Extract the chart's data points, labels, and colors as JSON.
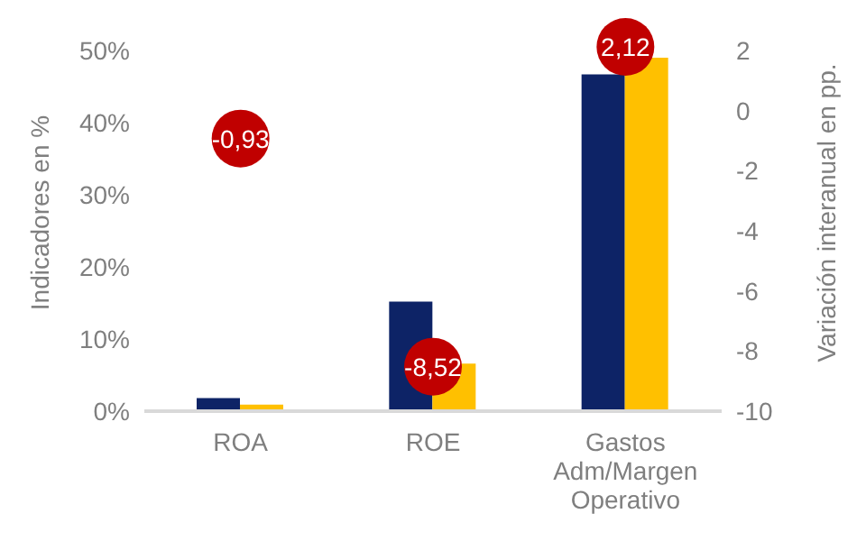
{
  "chart_data": {
    "type": "bar",
    "ylabel": "Indicadores en %",
    "y2label": "Variación interanual en pp.",
    "categories": [
      "ROA",
      "ROE",
      "Gastos Adm/Margen Operativo"
    ],
    "series": [
      {
        "color": "#0d2366",
        "values": [
          1.8,
          15.2,
          46.7
        ]
      },
      {
        "color": "#ffc000",
        "values": [
          0.9,
          6.6,
          49.0
        ]
      },
      {
        "type": "scatter",
        "axis": "y2",
        "color": "#c00000",
        "values": [
          -0.93,
          -8.52,
          2.12
        ],
        "value_labels": [
          "-0,93",
          "-8,52",
          "2,12"
        ]
      }
    ],
    "ylim": [
      0,
      55
    ],
    "yticks": [
      {
        "value": 0,
        "label": "0%"
      },
      {
        "value": 10,
        "label": "10%"
      },
      {
        "value": 20,
        "label": "20%"
      },
      {
        "value": 30,
        "label": "30%"
      },
      {
        "value": 40,
        "label": "40%"
      },
      {
        "value": 50,
        "label": "50%"
      }
    ],
    "y2lim": [
      -10,
      3.2
    ],
    "y2ticks": [
      -10,
      -8,
      -6,
      -4,
      -2,
      0,
      2
    ],
    "grid": false,
    "legend": false
  }
}
